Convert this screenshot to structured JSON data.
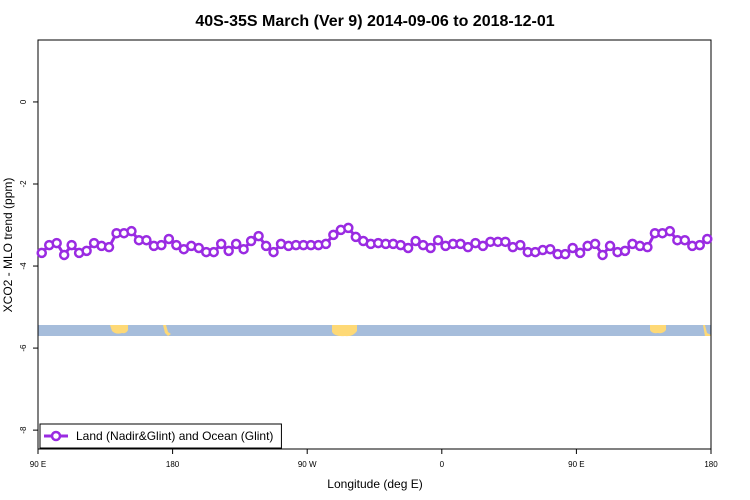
{
  "chart_data": {
    "type": "line",
    "title": "40S-35S March (Ver 9)   2014-09-06 to 2018-12-01",
    "x_label": "Longitude (deg E)",
    "y_label": "XCO2 - MLO trend (ppm)",
    "x": [
      92.5,
      97.5,
      102.5,
      107.5,
      112.5,
      117.5,
      122.5,
      127.5,
      132.5,
      137.5,
      142.5,
      147.5,
      152.5,
      157.5,
      162.5,
      167.5,
      172.5,
      177.5,
      182.5,
      187.5,
      192.5,
      197.5,
      202.5,
      207.5,
      212.5,
      217.5,
      222.5,
      227.5,
      232.5,
      237.5,
      242.5,
      247.5,
      252.5,
      257.5,
      262.5,
      267.5,
      272.5,
      277.5,
      282.5,
      287.5,
      292.5,
      297.5,
      302.5,
      307.5,
      312.5,
      317.5,
      322.5,
      327.5,
      332.5,
      337.5,
      342.5,
      347.5,
      352.5,
      357.5,
      362.5,
      367.5,
      372.5,
      377.5,
      382.5,
      387.5,
      392.5,
      397.5,
      402.5,
      407.5,
      412.5,
      417.5,
      422.5,
      427.5,
      432.5,
      437.5,
      442.5,
      447.5,
      452.5,
      457.5,
      462.5,
      467.5,
      472.5,
      477.5,
      482.5,
      487.5,
      492.5,
      497.5,
      502.5,
      507.5,
      512.5,
      517.5,
      522.5,
      527.5,
      532.5,
      537.5
    ],
    "series": [
      {
        "name": "Land (Nadir&Glint) and Ocean (Glint)",
        "color": "#9a2be2",
        "values": [
          -3.68,
          -3.49,
          -3.44,
          -3.73,
          -3.49,
          -3.68,
          -3.63,
          -3.44,
          -3.51,
          -3.54,
          -3.2,
          -3.2,
          -3.15,
          -3.37,
          -3.37,
          -3.51,
          -3.49,
          -3.34,
          -3.49,
          -3.59,
          -3.51,
          -3.56,
          -3.66,
          -3.66,
          -3.46,
          -3.63,
          -3.46,
          -3.59,
          -3.39,
          -3.27,
          -3.51,
          -3.66,
          -3.46,
          -3.51,
          -3.49,
          -3.49,
          -3.49,
          -3.49,
          -3.46,
          -3.24,
          -3.12,
          -3.07,
          -3.29,
          -3.39,
          -3.46,
          -3.44,
          -3.46,
          -3.46,
          -3.49,
          -3.56,
          -3.39,
          -3.49,
          -3.56,
          -3.37,
          -3.51,
          -3.46,
          -3.46,
          -3.54,
          -3.44,
          -3.51,
          -3.41,
          -3.41,
          -3.41,
          -3.54,
          -3.49,
          -3.66,
          -3.66,
          -3.61,
          -3.59,
          -3.71,
          -3.71,
          -3.56,
          -3.68,
          -3.51,
          -3.46,
          -3.73,
          -3.51,
          -3.66,
          -3.63,
          -3.46,
          -3.51,
          -3.54,
          -3.2,
          -3.2,
          -3.15,
          -3.37,
          -3.37,
          -3.51,
          -3.49,
          -3.34
        ]
      }
    ],
    "xlim": [
      90,
      540
    ],
    "xticks": [
      {
        "value": 90,
        "label": "90 E"
      },
      180,
      {
        "value": 270,
        "label": "90 W"
      },
      {
        "value": 360,
        "label": "0"
      },
      {
        "value": 450,
        "label": "90 E"
      },
      {
        "value": 540,
        "label": "180"
      }
    ],
    "ylim": [
      -8.46,
      1.51
    ],
    "yticks": [
      0,
      -2,
      -4,
      -6,
      -8
    ],
    "legend": "bottom-left"
  }
}
